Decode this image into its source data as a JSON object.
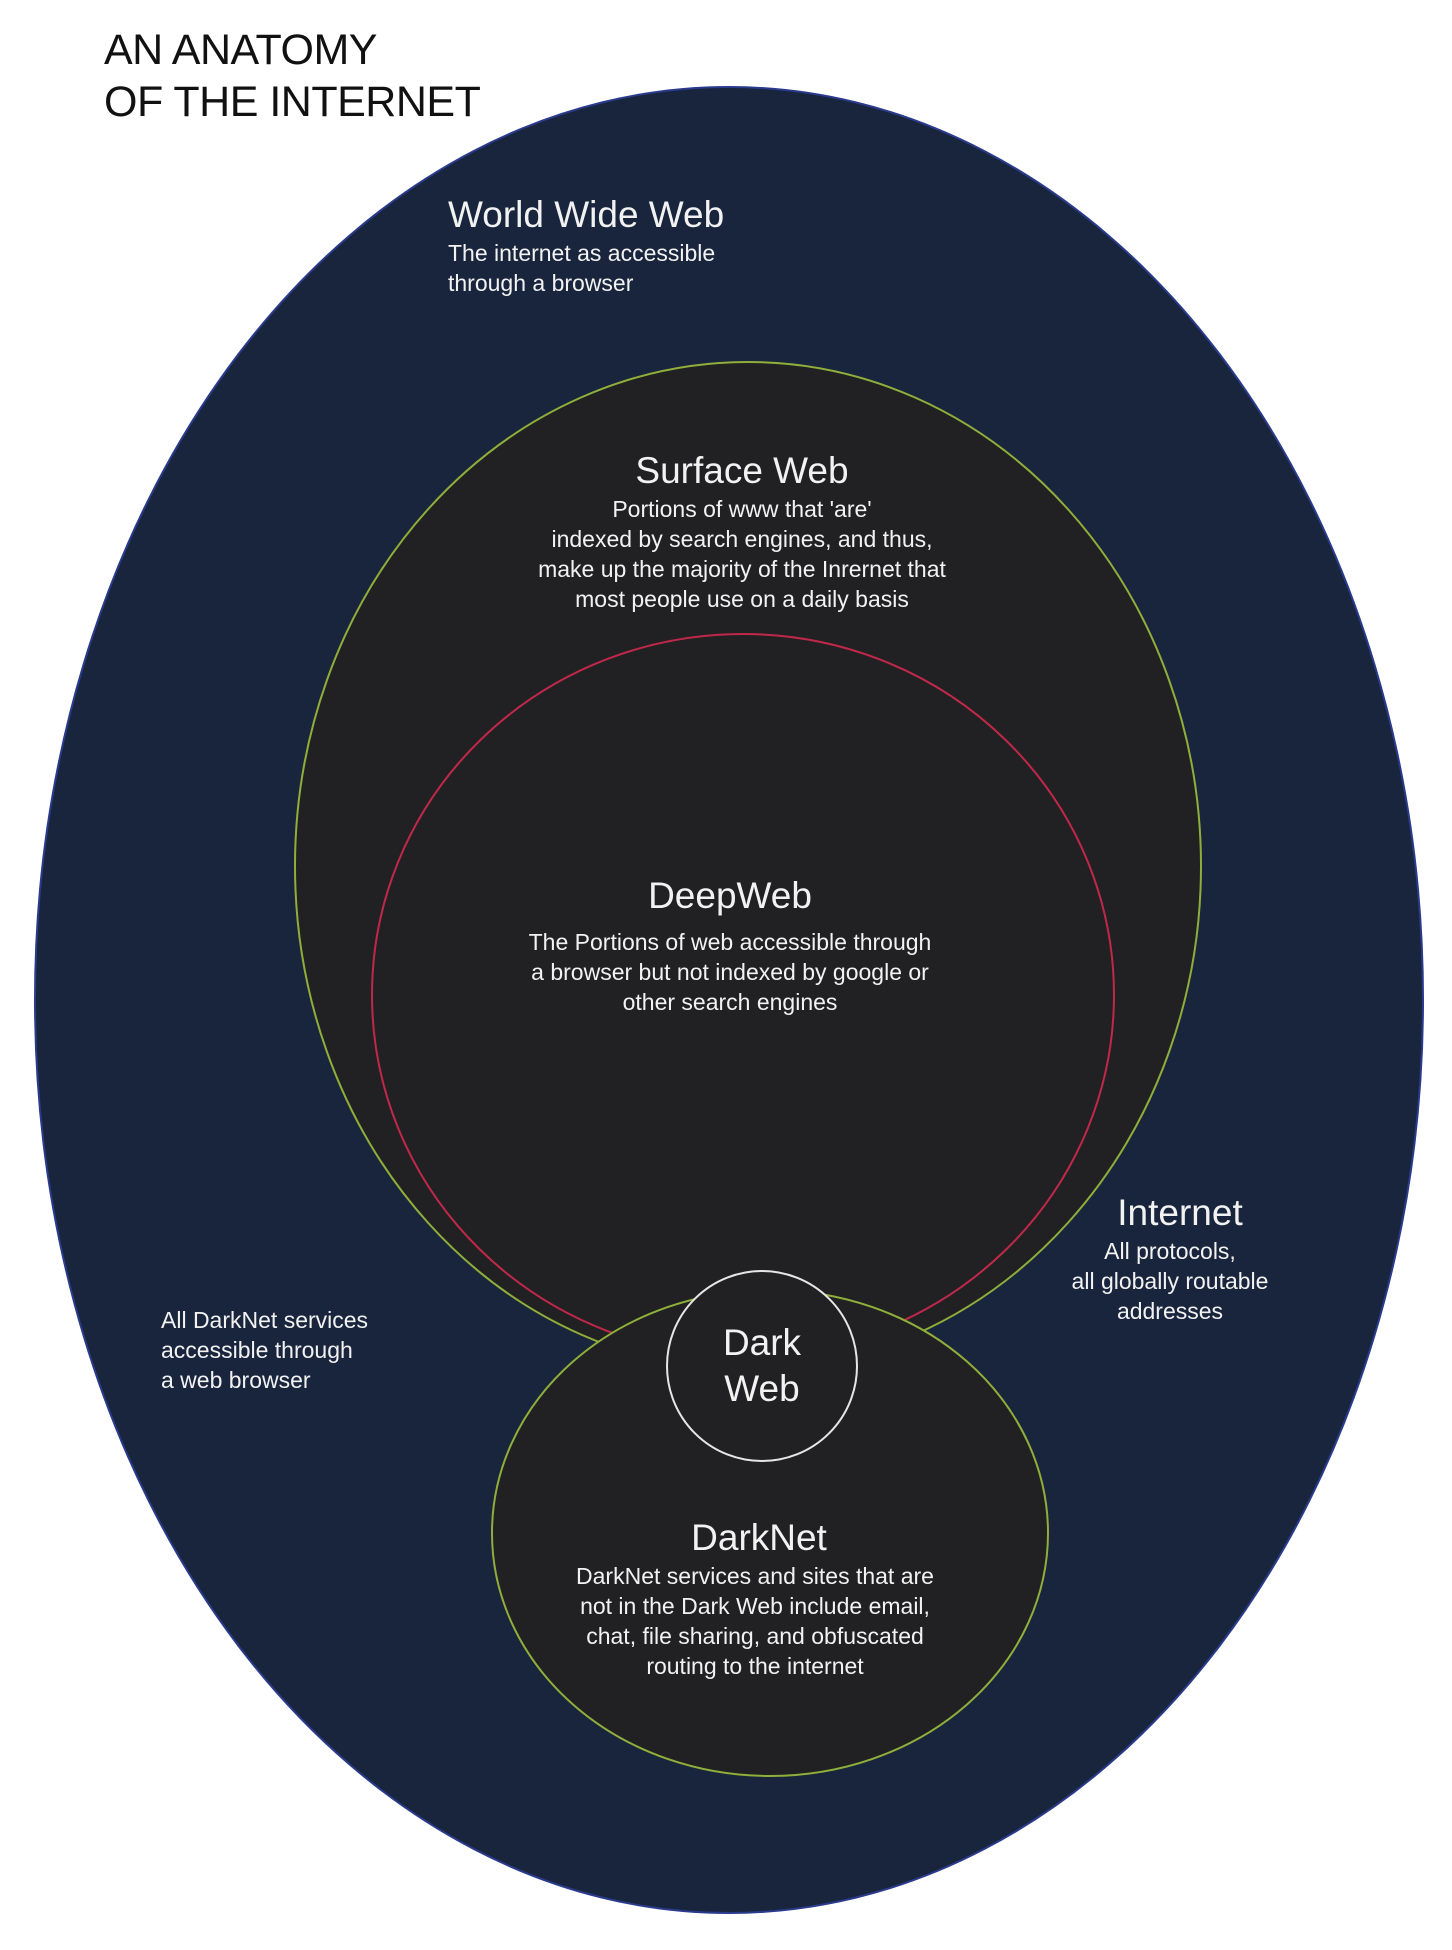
{
  "title": {
    "line1": "AN ANATOMY",
    "line2": "OF THE INTERNET"
  },
  "colors": {
    "internet_fill": "#19253c",
    "internet_stroke": "#2a3a8c",
    "web_fill": "#212123",
    "surface_stroke": "#8fae3a",
    "deep_stroke": "#c0284a",
    "darknet_stroke": "#8fae3a",
    "darkweb_stroke": "#e6e6e6",
    "text": "#f2f2f2",
    "title_text": "#111111"
  },
  "nodes": {
    "www": {
      "heading": "World Wide Web",
      "description": "The internet as accessible\nthrough a browser"
    },
    "surface": {
      "heading": "Surface Web",
      "description": "Portions of www that 'are'\nindexed by search engines, and thus,\nmake up the majority of the Inrernet that\nmost people use on a daily basis"
    },
    "deep": {
      "heading": "DeepWeb",
      "description": "The Portions of web accessible through\na browser but not indexed by google or\nother search engines"
    },
    "internet": {
      "heading": "Internet",
      "description": "All protocols,\nall globally routable\naddresses"
    },
    "darkweb_note": {
      "description": "All DarkNet services\naccessible through\na web browser"
    },
    "darkweb": {
      "heading_line1": "Dark",
      "heading_line2": "Web"
    },
    "darknet": {
      "heading": "DarkNet",
      "description": "DarkNet services and sites that are\nnot in the Dark Web include email,\nchat, file sharing, and obfuscated\nrouting to the internet"
    }
  }
}
